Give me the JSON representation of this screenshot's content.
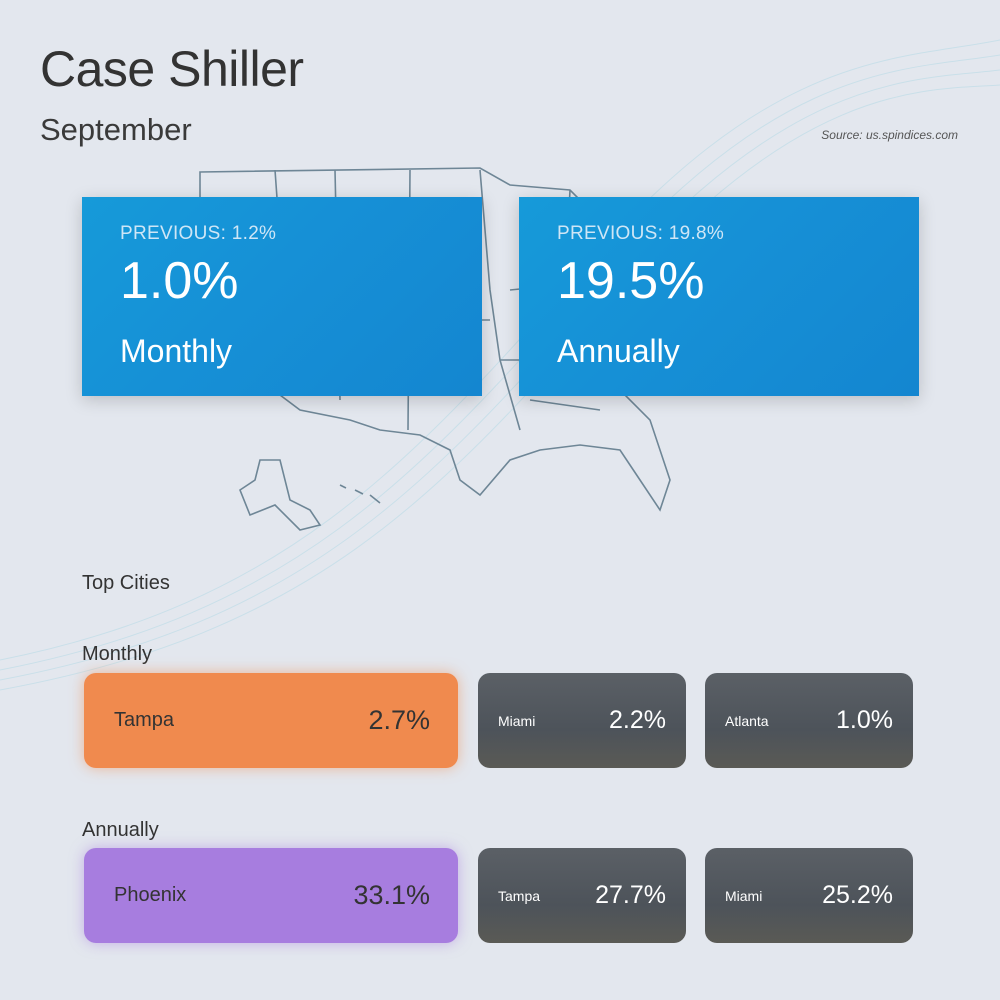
{
  "header": {
    "title": "Case Shiller",
    "subtitle": "September",
    "source": "Source: us.spindices.com"
  },
  "stats": [
    {
      "previous": "PREVIOUS: 1.2%",
      "value": "1.0%",
      "label": "Monthly"
    },
    {
      "previous": "PREVIOUS: 19.8%",
      "value": "19.5%",
      "label": "Annually"
    }
  ],
  "top_cities": {
    "title": "Top Cities",
    "monthly": {
      "label": "Monthly",
      "cities": [
        {
          "city": "Tampa",
          "value": "2.7%"
        },
        {
          "city": "Miami",
          "value": "2.2%"
        },
        {
          "city": "Atlanta",
          "value": "1.0%"
        }
      ]
    },
    "annually": {
      "label": "Annually",
      "cities": [
        {
          "city": "Phoenix",
          "value": "33.1%"
        },
        {
          "city": "Tampa",
          "value": "27.7%"
        },
        {
          "city": "Miami",
          "value": "25.2%"
        }
      ]
    }
  },
  "colors": {
    "stat_blue": "#1690d6",
    "highlight_monthly": "#f08a4e",
    "highlight_annual": "#a77ddf",
    "background": "#e3e7ee"
  }
}
